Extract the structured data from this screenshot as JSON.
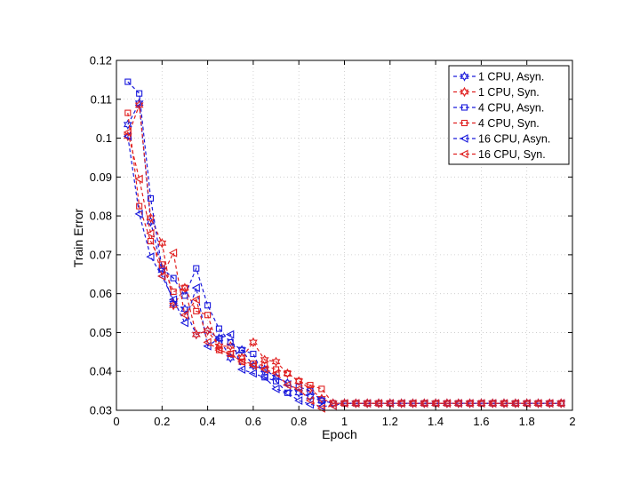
{
  "chart_data": {
    "type": "line",
    "title": "",
    "xlabel": "Epoch",
    "ylabel": "Train Error",
    "xlim": [
      0,
      2
    ],
    "ylim": [
      0.03,
      0.12
    ],
    "xticks": [
      0,
      0.2,
      0.4,
      0.6,
      0.8,
      1,
      1.2,
      1.4,
      1.6,
      1.8,
      2
    ],
    "xtick_labels": [
      "0",
      "0.2",
      "0.4",
      "0.6",
      "0.8",
      "1",
      "1.2",
      "1.4",
      "1.6",
      "1.8",
      "2"
    ],
    "yticks": [
      0.03,
      0.04,
      0.05,
      0.06,
      0.07,
      0.08,
      0.09,
      0.1,
      0.11,
      0.12
    ],
    "ytick_labels": [
      "0.03",
      "0.04",
      "0.05",
      "0.06",
      "0.07",
      "0.08",
      "0.09",
      "0.1",
      "0.11",
      "0.12"
    ],
    "grid": true,
    "legend_position": "top-right",
    "series": [
      {
        "name": "1 CPU, Asyn.",
        "color": "#1a1adc",
        "marker": "hexagram",
        "x": [
          0.05,
          0.1,
          0.15,
          0.2,
          0.25,
          0.3,
          0.35,
          0.4,
          0.45,
          0.5,
          0.55,
          0.6,
          0.65,
          0.7,
          0.75,
          0.8,
          0.85,
          0.9,
          0.95
        ],
        "y": [
          0.1035,
          0.109,
          0.0785,
          0.066,
          0.0575,
          0.056,
          0.0495,
          0.0505,
          0.0485,
          0.0435,
          0.0455,
          0.0415,
          0.0405,
          0.0385,
          0.037,
          0.0345,
          0.0335,
          0.0325,
          0.0318
        ]
      },
      {
        "name": "1 CPU, Syn.",
        "color": "#e02020",
        "marker": "hexagram",
        "x": [
          0.05,
          0.1,
          0.15,
          0.2,
          0.25,
          0.3,
          0.35,
          0.4,
          0.45,
          0.5,
          0.55,
          0.6,
          0.65,
          0.7,
          0.75,
          0.8,
          0.85,
          0.9,
          0.95
        ],
        "y": [
          0.1005,
          0.1085,
          0.0795,
          0.073,
          0.057,
          0.0615,
          0.0495,
          0.0505,
          0.0465,
          0.0465,
          0.0435,
          0.0475,
          0.043,
          0.0425,
          0.0395,
          0.0375,
          0.0355,
          0.033,
          0.0318
        ]
      },
      {
        "name": "4 CPU, Asyn.",
        "color": "#1a1adc",
        "marker": "square",
        "x": [
          0.05,
          0.1,
          0.15,
          0.2,
          0.25,
          0.3,
          0.35,
          0.4,
          0.45,
          0.5,
          0.55,
          0.6,
          0.65,
          0.7,
          0.75,
          0.8,
          0.85,
          0.9,
          0.95
        ],
        "y": [
          0.1145,
          0.1115,
          0.0845,
          0.0665,
          0.064,
          0.0595,
          0.0665,
          0.057,
          0.051,
          0.0475,
          0.0455,
          0.0445,
          0.0385,
          0.0375,
          0.0345,
          0.036,
          0.035,
          0.0325,
          0.0318
        ]
      },
      {
        "name": "4 CPU, Syn.",
        "color": "#e02020",
        "marker": "square",
        "x": [
          0.05,
          0.1,
          0.15,
          0.2,
          0.25,
          0.3,
          0.35,
          0.4,
          0.45,
          0.5,
          0.55,
          0.6,
          0.65,
          0.7,
          0.75,
          0.8,
          0.85,
          0.9,
          0.95
        ],
        "y": [
          0.1065,
          0.0825,
          0.0735,
          0.0675,
          0.0605,
          0.0615,
          0.0555,
          0.0545,
          0.0455,
          0.0445,
          0.0425,
          0.042,
          0.0415,
          0.0405,
          0.0395,
          0.0375,
          0.0365,
          0.0355,
          0.0318
        ]
      },
      {
        "name": "16 CPU, Asyn.",
        "color": "#1a1adc",
        "marker": "triangle-left",
        "x": [
          0.05,
          0.1,
          0.15,
          0.2,
          0.25,
          0.3,
          0.35,
          0.4,
          0.45,
          0.5,
          0.55,
          0.6,
          0.65,
          0.7,
          0.75,
          0.8,
          0.85,
          0.9,
          0.95
        ],
        "y": [
          0.1005,
          0.0805,
          0.0695,
          0.0645,
          0.0585,
          0.0525,
          0.0615,
          0.0465,
          0.0485,
          0.0495,
          0.0405,
          0.0395,
          0.0385,
          0.0355,
          0.0345,
          0.0325,
          0.0315,
          0.031,
          0.0312
        ]
      },
      {
        "name": "16 CPU, Syn.",
        "color": "#e02020",
        "marker": "triangle-left",
        "x": [
          0.05,
          0.1,
          0.15,
          0.2,
          0.25,
          0.3,
          0.35,
          0.4,
          0.45,
          0.5,
          0.55,
          0.6,
          0.65,
          0.7,
          0.75,
          0.8,
          0.85,
          0.9,
          0.95
        ],
        "y": [
          0.1015,
          0.0895,
          0.0755,
          0.0645,
          0.0705,
          0.0545,
          0.0585,
          0.0475,
          0.0455,
          0.0445,
          0.0425,
          0.0415,
          0.0405,
          0.0395,
          0.0365,
          0.0355,
          0.0325,
          0.0305,
          0.0312
        ]
      }
    ],
    "plateau": {
      "x": [
        1.0,
        1.05,
        1.1,
        1.15,
        1.2,
        1.25,
        1.3,
        1.35,
        1.4,
        1.45,
        1.5,
        1.55,
        1.6,
        1.65,
        1.7,
        1.75,
        1.8,
        1.85,
        1.9,
        1.95
      ],
      "y": 0.0318
    }
  }
}
